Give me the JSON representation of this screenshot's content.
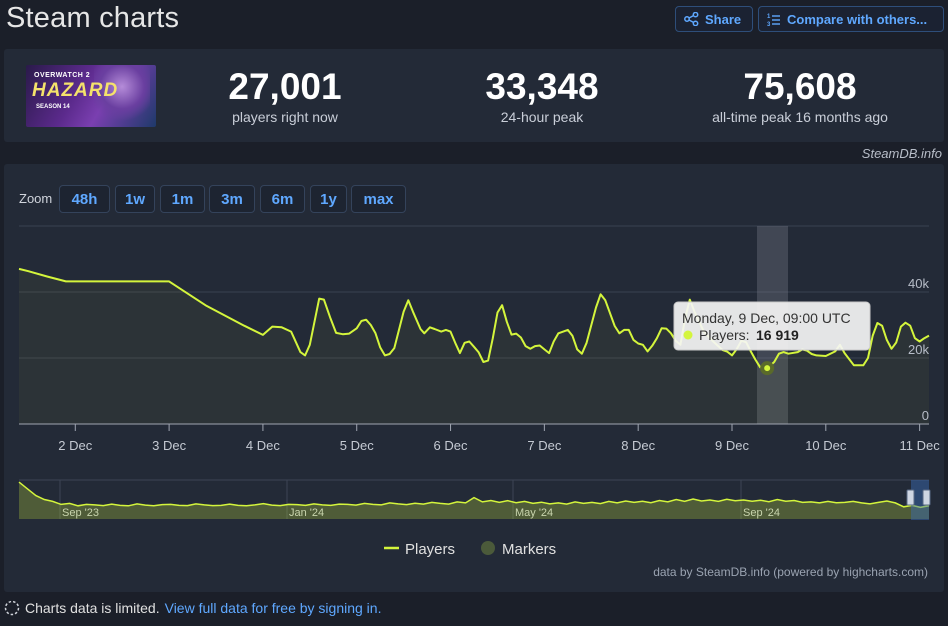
{
  "page": {
    "title": "Steam charts"
  },
  "header": {
    "share_label": "Share",
    "compare_label": "Compare with others..."
  },
  "game": {
    "image_title": "OVERWATCH 2",
    "image_subtitle": "HAZARD",
    "image_season": "SEASON 14"
  },
  "stats": [
    {
      "value": "27,001",
      "label": "players right now"
    },
    {
      "value": "33,348",
      "label": "24-hour peak"
    },
    {
      "value": "75,608",
      "label": "all-time peak 16 months ago"
    }
  ],
  "source_label": "SteamDB.info",
  "zoom": {
    "label": "Zoom",
    "options": [
      "48h",
      "1w",
      "1m",
      "3m",
      "6m",
      "1y",
      "max"
    ]
  },
  "tooltip": {
    "date": "Monday, 9 Dec, 09:00 UTC",
    "series_label": "Players:",
    "value": "16 919"
  },
  "legend": {
    "players": "Players",
    "markers": "Markers"
  },
  "credit": "data by SteamDB.info (powered by highcharts.com)",
  "footer": {
    "text": "Charts data is limited.",
    "link": "View full data for free by signing in."
  },
  "colors": {
    "line": "#d4f53c",
    "link": "#5fa8ff",
    "background": "#1b1f29",
    "panel": "#232a37"
  },
  "chart_data": {
    "type": "line",
    "series": [
      {
        "name": "Players"
      }
    ],
    "x_tick_labels": [
      "2 Dec",
      "3 Dec",
      "4 Dec",
      "5 Dec",
      "6 Dec",
      "7 Dec",
      "8 Dec",
      "9 Dec",
      "10 Dec",
      "11 Dec"
    ],
    "y_tick_labels": [
      "0",
      "20k",
      "40k"
    ],
    "ylim": [
      0,
      60000
    ],
    "x_range_days": [
      1.4,
      11.1
    ],
    "highlight": {
      "x": 9.375,
      "y": 16919
    },
    "points": [
      [
        1.4,
        47000
      ],
      [
        1.5,
        46300
      ],
      [
        1.7,
        44700
      ],
      [
        1.9,
        43200
      ],
      [
        2.2,
        43200
      ],
      [
        2.6,
        43200
      ],
      [
        3.0,
        43200
      ],
      [
        3.4,
        35800
      ],
      [
        3.8,
        29800
      ],
      [
        4.0,
        27000
      ],
      [
        4.1,
        29500
      ],
      [
        4.2,
        29300
      ],
      [
        4.3,
        28000
      ],
      [
        4.4,
        21800
      ],
      [
        4.45,
        20800
      ],
      [
        4.5,
        24000
      ],
      [
        4.55,
        31000
      ],
      [
        4.6,
        38000
      ],
      [
        4.65,
        37700
      ],
      [
        4.72,
        32000
      ],
      [
        4.78,
        27600
      ],
      [
        4.85,
        27200
      ],
      [
        4.92,
        27400
      ],
      [
        5.0,
        29000
      ],
      [
        5.05,
        31200
      ],
      [
        5.1,
        31600
      ],
      [
        5.15,
        30000
      ],
      [
        5.2,
        27500
      ],
      [
        5.25,
        23200
      ],
      [
        5.3,
        20800
      ],
      [
        5.35,
        21200
      ],
      [
        5.4,
        23000
      ],
      [
        5.5,
        34000
      ],
      [
        5.55,
        37500
      ],
      [
        5.6,
        34000
      ],
      [
        5.68,
        28800
      ],
      [
        5.72,
        27500
      ],
      [
        5.78,
        29300
      ],
      [
        5.83,
        28800
      ],
      [
        5.9,
        28000
      ],
      [
        5.95,
        28500
      ],
      [
        6.0,
        28000
      ],
      [
        6.05,
        24600
      ],
      [
        6.1,
        21500
      ],
      [
        6.15,
        24600
      ],
      [
        6.2,
        25000
      ],
      [
        6.25,
        23400
      ],
      [
        6.3,
        21700
      ],
      [
        6.35,
        18800
      ],
      [
        6.4,
        19200
      ],
      [
        6.45,
        26000
      ],
      [
        6.5,
        33800
      ],
      [
        6.55,
        36000
      ],
      [
        6.6,
        31000
      ],
      [
        6.65,
        27100
      ],
      [
        6.7,
        27400
      ],
      [
        6.75,
        26200
      ],
      [
        6.8,
        23600
      ],
      [
        6.85,
        22800
      ],
      [
        6.9,
        23600
      ],
      [
        6.95,
        23800
      ],
      [
        7.0,
        22600
      ],
      [
        7.05,
        21500
      ],
      [
        7.1,
        25000
      ],
      [
        7.15,
        27500
      ],
      [
        7.25,
        28500
      ],
      [
        7.3,
        26700
      ],
      [
        7.35,
        22600
      ],
      [
        7.4,
        21300
      ],
      [
        7.45,
        24600
      ],
      [
        7.55,
        35300
      ],
      [
        7.6,
        39300
      ],
      [
        7.65,
        37500
      ],
      [
        7.75,
        29700
      ],
      [
        7.8,
        27500
      ],
      [
        7.85,
        28500
      ],
      [
        7.9,
        28500
      ],
      [
        7.95,
        25500
      ],
      [
        8.0,
        24400
      ],
      [
        8.05,
        24000
      ],
      [
        8.1,
        22000
      ],
      [
        8.15,
        23700
      ],
      [
        8.2,
        26000
      ],
      [
        8.25,
        29000
      ],
      [
        8.3,
        28900
      ],
      [
        8.35,
        27500
      ],
      [
        8.4,
        25200
      ],
      [
        8.45,
        24000
      ],
      [
        8.5,
        32000
      ],
      [
        8.55,
        37700
      ],
      [
        8.6,
        34000
      ],
      [
        8.7,
        28000
      ],
      [
        8.8,
        25000
      ],
      [
        8.9,
        22400
      ],
      [
        8.95,
        21900
      ],
      [
        9.0,
        20800
      ],
      [
        9.05,
        22700
      ],
      [
        9.1,
        25200
      ],
      [
        9.15,
        24800
      ],
      [
        9.2,
        22000
      ],
      [
        9.25,
        19500
      ],
      [
        9.3,
        17200
      ],
      [
        9.375,
        16919
      ],
      [
        9.45,
        18800
      ],
      [
        9.5,
        21300
      ],
      [
        9.55,
        21800
      ],
      [
        9.6,
        21300
      ],
      [
        9.7,
        21800
      ],
      [
        9.75,
        22600
      ],
      [
        9.8,
        22200
      ],
      [
        9.85,
        21200
      ],
      [
        9.9,
        20800
      ],
      [
        10.0,
        20600
      ],
      [
        10.1,
        22000
      ],
      [
        10.15,
        24000
      ],
      [
        10.2,
        21500
      ],
      [
        10.3,
        17800
      ],
      [
        10.4,
        17800
      ],
      [
        10.45,
        20000
      ],
      [
        10.5,
        26800
      ],
      [
        10.55,
        30600
      ],
      [
        10.6,
        29800
      ],
      [
        10.65,
        25500
      ],
      [
        10.7,
        22800
      ],
      [
        10.75,
        24700
      ],
      [
        10.8,
        29500
      ],
      [
        10.85,
        30700
      ],
      [
        10.9,
        29800
      ],
      [
        10.95,
        26000
      ],
      [
        11.0,
        25000
      ],
      [
        11.05,
        26000
      ],
      [
        11.1,
        26800
      ]
    ],
    "navigator": {
      "x_labels": [
        "Sep '23",
        "Jan '24",
        "May '24",
        "Sep '24"
      ],
      "values": [
        75608,
        62000,
        48000,
        40000,
        36000,
        30000,
        32000,
        27000,
        30000,
        29000,
        27500,
        30500,
        28000,
        27000,
        31000,
        28500,
        27000,
        29500,
        30000,
        28000,
        27500,
        31000,
        29000,
        27500,
        28000,
        30500,
        28000,
        27000,
        29000,
        31500,
        28500,
        27500,
        30000,
        29500,
        28000,
        31000,
        29000,
        28000,
        30500,
        30000,
        28500,
        32000,
        30000,
        29000,
        33000,
        31000,
        29500,
        32500,
        30500,
        34000,
        32000,
        30500,
        35000,
        33000,
        44000,
        35000,
        38000,
        34000,
        37500,
        33500,
        36000,
        32000,
        34500,
        31000,
        33000,
        30500,
        35000,
        32000,
        34000,
        31500,
        36000,
        33000,
        37000,
        34000,
        36500,
        33500,
        38000,
        35000,
        40000,
        36000,
        41000,
        37000,
        39000,
        36000,
        40500,
        37500,
        39000,
        36500,
        38500,
        35500,
        40000,
        36500,
        38000,
        34000,
        35000,
        33000,
        36000,
        33500,
        34000,
        36000,
        33000,
        31000,
        34000,
        37000,
        33000,
        25000,
        28000,
        24000,
        27000
      ]
    }
  }
}
